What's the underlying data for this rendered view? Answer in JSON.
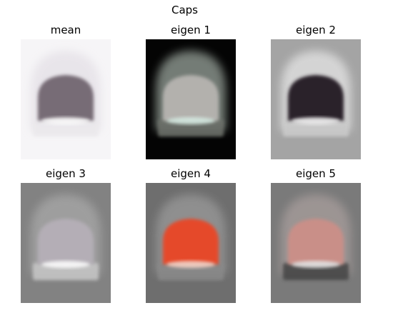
{
  "figure": {
    "title": "Caps",
    "panels": [
      {
        "title": "mean",
        "bg": "#f6f5f7",
        "outer": "#e4e0e6",
        "dome": "#776c76",
        "band": "#ebe9ec",
        "glow": "#ffffff"
      },
      {
        "title": "eigen 1",
        "bg": "#040404",
        "outer": "#9aa49c",
        "dome": "#b3b1ad",
        "band": "#6b6e68",
        "glow": "#d9efe6"
      },
      {
        "title": "eigen 2",
        "bg": "#a4a4a4",
        "outer": "#e5e5e5",
        "dome": "#2a2129",
        "band": "#c9c9c9",
        "glow": "#f3f3f3"
      },
      {
        "title": "eigen 3",
        "bg": "#828282",
        "outer": "#a8a8a8",
        "dome": "#b4aeb6",
        "band": "#c4c4c4",
        "glow": "#ffffff"
      },
      {
        "title": "eigen 4",
        "bg": "#6e6e6e",
        "outer": "#9a9a9a",
        "dome": "#e54a2a",
        "band": "#888888",
        "glow": "#f6d8cc"
      },
      {
        "title": "eigen 5",
        "bg": "#7a7a7a",
        "outer": "#a89e9c",
        "dome": "#c98f88",
        "band": "#474747",
        "glow": "#e8e8e8"
      }
    ]
  }
}
